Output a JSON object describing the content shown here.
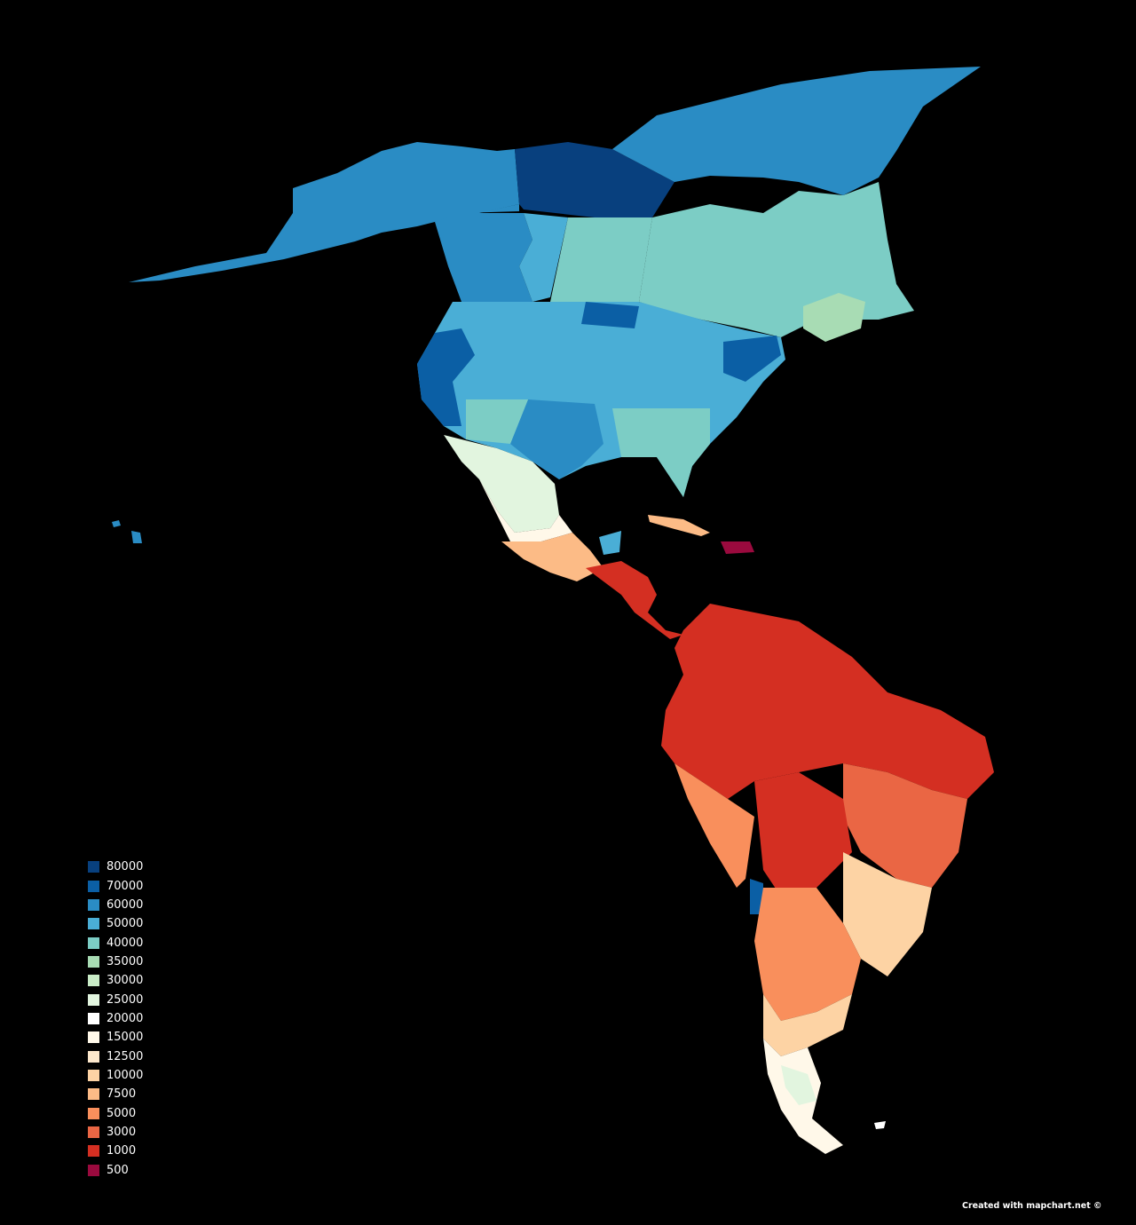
{
  "legend": {
    "items": [
      {
        "label": "80000",
        "color": "#08407e"
      },
      {
        "label": "70000",
        "color": "#0b5fa5"
      },
      {
        "label": "60000",
        "color": "#2a8cc4"
      },
      {
        "label": "50000",
        "color": "#4aaed6"
      },
      {
        "label": "40000",
        "color": "#7ccdc5"
      },
      {
        "label": "35000",
        "color": "#a8dcb4"
      },
      {
        "label": "30000",
        "color": "#c9ecc7"
      },
      {
        "label": "25000",
        "color": "#e2f5df"
      },
      {
        "label": "20000",
        "color": "#ffffff"
      },
      {
        "label": "15000",
        "color": "#fff8e9"
      },
      {
        "label": "12500",
        "color": "#fde8cc"
      },
      {
        "label": "10000",
        "color": "#fdd3a4"
      },
      {
        "label": "7500",
        "color": "#fcbb86"
      },
      {
        "label": "5000",
        "color": "#f98f5c"
      },
      {
        "label": "3000",
        "color": "#ea6644"
      },
      {
        "label": "1000",
        "color": "#d42f22"
      },
      {
        "label": "500",
        "color": "#9a0a3e"
      }
    ]
  },
  "credit": "Created with mapchart.net ©"
}
